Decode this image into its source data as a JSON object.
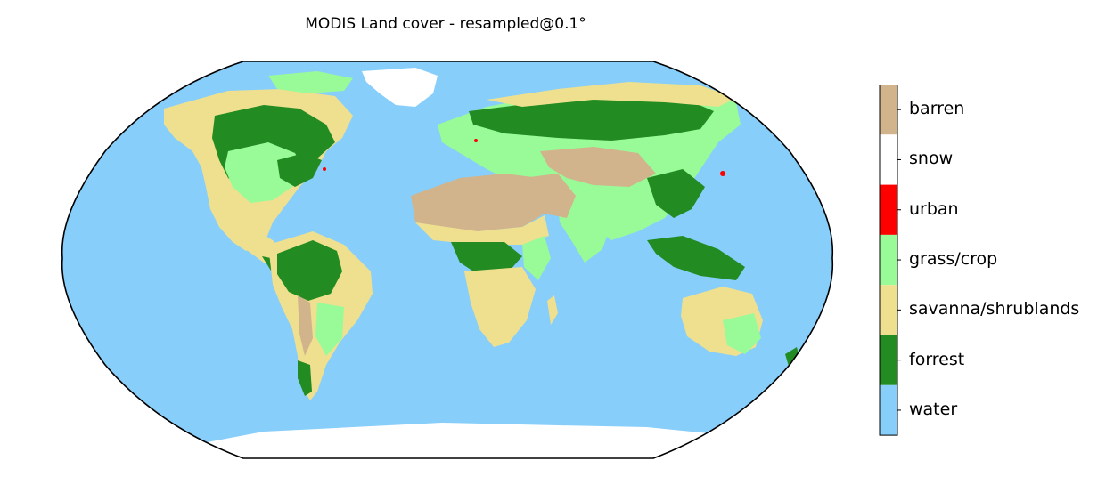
{
  "title": "MODIS Land cover - resampled@0.1°",
  "legend": {
    "classes": [
      {
        "label": "barren",
        "color": "#d2b48c"
      },
      {
        "label": "snow",
        "color": "#ffffff"
      },
      {
        "label": "urban",
        "color": "#ff0000"
      },
      {
        "label": "grass/crop",
        "color": "#98fb98"
      },
      {
        "label": "savanna/shrublands",
        "color": "#eee08f"
      },
      {
        "label": "forrest",
        "color": "#228b22"
      },
      {
        "label": "water",
        "color": "#87cefa"
      }
    ]
  },
  "map": {
    "projection": "Robinson",
    "ocean_color": "#87cefa",
    "land_colors": {
      "barren": "#d2b48c",
      "snow": "#ffffff",
      "urban": "#ff0000",
      "grass": "#98fb98",
      "savanna": "#eee08f",
      "forest": "#228b22"
    }
  }
}
